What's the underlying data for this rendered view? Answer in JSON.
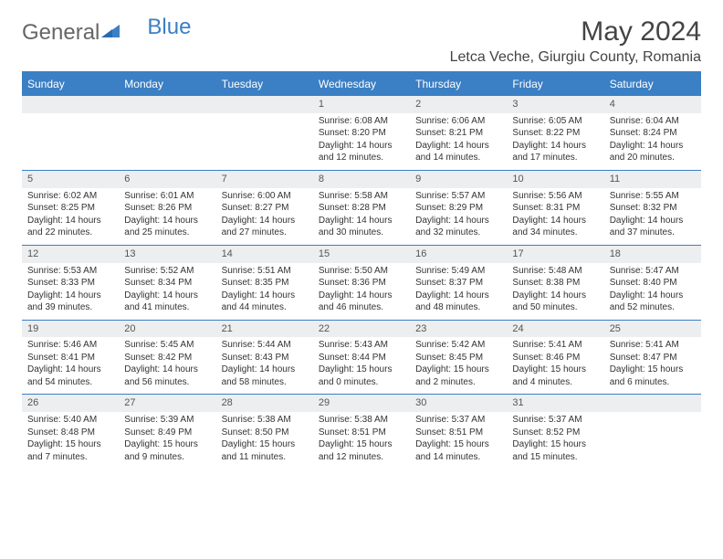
{
  "brand": {
    "part1": "General",
    "part2": "Blue"
  },
  "title": "May 2024",
  "location": "Letca Veche, Giurgiu County, Romania",
  "colors": {
    "accent": "#3b7fc4",
    "header_row_bg": "#eceef0",
    "text": "#333333",
    "background": "#ffffff"
  },
  "daysOfWeek": [
    "Sunday",
    "Monday",
    "Tuesday",
    "Wednesday",
    "Thursday",
    "Friday",
    "Saturday"
  ],
  "weeks": [
    [
      null,
      null,
      null,
      {
        "num": "1",
        "sunrise": "Sunrise: 6:08 AM",
        "sunset": "Sunset: 8:20 PM",
        "daylight": "Daylight: 14 hours and 12 minutes."
      },
      {
        "num": "2",
        "sunrise": "Sunrise: 6:06 AM",
        "sunset": "Sunset: 8:21 PM",
        "daylight": "Daylight: 14 hours and 14 minutes."
      },
      {
        "num": "3",
        "sunrise": "Sunrise: 6:05 AM",
        "sunset": "Sunset: 8:22 PM",
        "daylight": "Daylight: 14 hours and 17 minutes."
      },
      {
        "num": "4",
        "sunrise": "Sunrise: 6:04 AM",
        "sunset": "Sunset: 8:24 PM",
        "daylight": "Daylight: 14 hours and 20 minutes."
      }
    ],
    [
      {
        "num": "5",
        "sunrise": "Sunrise: 6:02 AM",
        "sunset": "Sunset: 8:25 PM",
        "daylight": "Daylight: 14 hours and 22 minutes."
      },
      {
        "num": "6",
        "sunrise": "Sunrise: 6:01 AM",
        "sunset": "Sunset: 8:26 PM",
        "daylight": "Daylight: 14 hours and 25 minutes."
      },
      {
        "num": "7",
        "sunrise": "Sunrise: 6:00 AM",
        "sunset": "Sunset: 8:27 PM",
        "daylight": "Daylight: 14 hours and 27 minutes."
      },
      {
        "num": "8",
        "sunrise": "Sunrise: 5:58 AM",
        "sunset": "Sunset: 8:28 PM",
        "daylight": "Daylight: 14 hours and 30 minutes."
      },
      {
        "num": "9",
        "sunrise": "Sunrise: 5:57 AM",
        "sunset": "Sunset: 8:29 PM",
        "daylight": "Daylight: 14 hours and 32 minutes."
      },
      {
        "num": "10",
        "sunrise": "Sunrise: 5:56 AM",
        "sunset": "Sunset: 8:31 PM",
        "daylight": "Daylight: 14 hours and 34 minutes."
      },
      {
        "num": "11",
        "sunrise": "Sunrise: 5:55 AM",
        "sunset": "Sunset: 8:32 PM",
        "daylight": "Daylight: 14 hours and 37 minutes."
      }
    ],
    [
      {
        "num": "12",
        "sunrise": "Sunrise: 5:53 AM",
        "sunset": "Sunset: 8:33 PM",
        "daylight": "Daylight: 14 hours and 39 minutes."
      },
      {
        "num": "13",
        "sunrise": "Sunrise: 5:52 AM",
        "sunset": "Sunset: 8:34 PM",
        "daylight": "Daylight: 14 hours and 41 minutes."
      },
      {
        "num": "14",
        "sunrise": "Sunrise: 5:51 AM",
        "sunset": "Sunset: 8:35 PM",
        "daylight": "Daylight: 14 hours and 44 minutes."
      },
      {
        "num": "15",
        "sunrise": "Sunrise: 5:50 AM",
        "sunset": "Sunset: 8:36 PM",
        "daylight": "Daylight: 14 hours and 46 minutes."
      },
      {
        "num": "16",
        "sunrise": "Sunrise: 5:49 AM",
        "sunset": "Sunset: 8:37 PM",
        "daylight": "Daylight: 14 hours and 48 minutes."
      },
      {
        "num": "17",
        "sunrise": "Sunrise: 5:48 AM",
        "sunset": "Sunset: 8:38 PM",
        "daylight": "Daylight: 14 hours and 50 minutes."
      },
      {
        "num": "18",
        "sunrise": "Sunrise: 5:47 AM",
        "sunset": "Sunset: 8:40 PM",
        "daylight": "Daylight: 14 hours and 52 minutes."
      }
    ],
    [
      {
        "num": "19",
        "sunrise": "Sunrise: 5:46 AM",
        "sunset": "Sunset: 8:41 PM",
        "daylight": "Daylight: 14 hours and 54 minutes."
      },
      {
        "num": "20",
        "sunrise": "Sunrise: 5:45 AM",
        "sunset": "Sunset: 8:42 PM",
        "daylight": "Daylight: 14 hours and 56 minutes."
      },
      {
        "num": "21",
        "sunrise": "Sunrise: 5:44 AM",
        "sunset": "Sunset: 8:43 PM",
        "daylight": "Daylight: 14 hours and 58 minutes."
      },
      {
        "num": "22",
        "sunrise": "Sunrise: 5:43 AM",
        "sunset": "Sunset: 8:44 PM",
        "daylight": "Daylight: 15 hours and 0 minutes."
      },
      {
        "num": "23",
        "sunrise": "Sunrise: 5:42 AM",
        "sunset": "Sunset: 8:45 PM",
        "daylight": "Daylight: 15 hours and 2 minutes."
      },
      {
        "num": "24",
        "sunrise": "Sunrise: 5:41 AM",
        "sunset": "Sunset: 8:46 PM",
        "daylight": "Daylight: 15 hours and 4 minutes."
      },
      {
        "num": "25",
        "sunrise": "Sunrise: 5:41 AM",
        "sunset": "Sunset: 8:47 PM",
        "daylight": "Daylight: 15 hours and 6 minutes."
      }
    ],
    [
      {
        "num": "26",
        "sunrise": "Sunrise: 5:40 AM",
        "sunset": "Sunset: 8:48 PM",
        "daylight": "Daylight: 15 hours and 7 minutes."
      },
      {
        "num": "27",
        "sunrise": "Sunrise: 5:39 AM",
        "sunset": "Sunset: 8:49 PM",
        "daylight": "Daylight: 15 hours and 9 minutes."
      },
      {
        "num": "28",
        "sunrise": "Sunrise: 5:38 AM",
        "sunset": "Sunset: 8:50 PM",
        "daylight": "Daylight: 15 hours and 11 minutes."
      },
      {
        "num": "29",
        "sunrise": "Sunrise: 5:38 AM",
        "sunset": "Sunset: 8:51 PM",
        "daylight": "Daylight: 15 hours and 12 minutes."
      },
      {
        "num": "30",
        "sunrise": "Sunrise: 5:37 AM",
        "sunset": "Sunset: 8:51 PM",
        "daylight": "Daylight: 15 hours and 14 minutes."
      },
      {
        "num": "31",
        "sunrise": "Sunrise: 5:37 AM",
        "sunset": "Sunset: 8:52 PM",
        "daylight": "Daylight: 15 hours and 15 minutes."
      },
      null
    ]
  ]
}
